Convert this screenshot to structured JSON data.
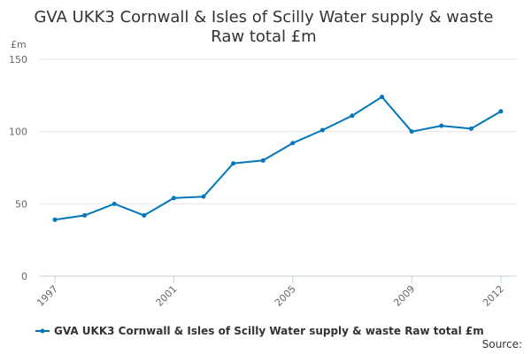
{
  "chart_data": {
    "type": "line",
    "title_lines": [
      "GVA UKK3 Cornwall & Isles of Scilly Water supply & waste",
      "Raw total £m"
    ],
    "ylabel": "£m",
    "xlabel": "",
    "x": [
      1997,
      1998,
      1999,
      2000,
      2001,
      2002,
      2003,
      2004,
      2005,
      2006,
      2007,
      2008,
      2009,
      2010,
      2011,
      2012
    ],
    "series": [
      {
        "name": "GVA UKK3 Cornwall & Isles of Scilly Water supply & waste Raw total £m",
        "values": [
          39,
          42,
          50,
          42,
          54,
          55,
          78,
          80,
          92,
          101,
          111,
          124,
          100,
          104,
          102,
          114
        ],
        "color": "#0077bb"
      }
    ],
    "ylim": [
      0,
      150
    ],
    "yticks": [
      0,
      50,
      100,
      150
    ],
    "xticks": [
      "1997",
      "2001",
      "2005",
      "2009",
      "2012"
    ],
    "grid": true,
    "legend_position": "bottom"
  },
  "source": "Source:"
}
